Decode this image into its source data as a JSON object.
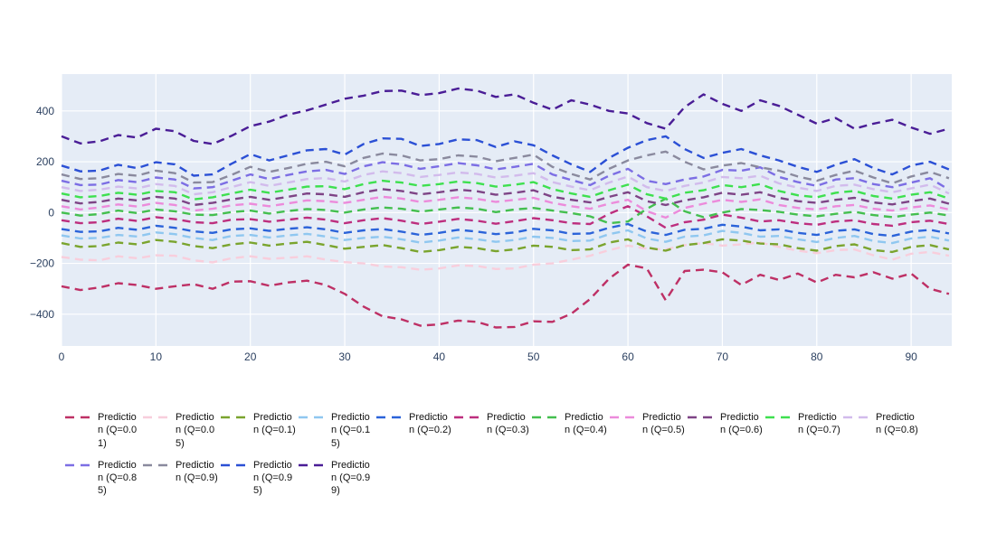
{
  "chart_data": {
    "type": "line",
    "title": "",
    "xlabel": "",
    "ylabel": "",
    "line_style": "dashed",
    "grid": true,
    "legend_position": "bottom",
    "plot_bgcolor": "#E5ECF6",
    "grid_color": "#FFFFFF",
    "tick_color": "#2a3f5f",
    "xlim": [
      0,
      94.3
    ],
    "ylim": [
      -525,
      545
    ],
    "x_ticks": [
      0,
      10,
      20,
      30,
      40,
      50,
      60,
      70,
      80,
      90
    ],
    "y_ticks": [
      -400,
      -200,
      0,
      200,
      400
    ],
    "x": [
      0,
      2,
      4,
      6,
      8,
      10,
      12,
      14,
      16,
      18,
      20,
      22,
      24,
      26,
      28,
      30,
      32,
      34,
      36,
      38,
      40,
      42,
      44,
      46,
      48,
      50,
      52,
      54,
      56,
      58,
      60,
      62,
      64,
      66,
      68,
      70,
      72,
      74,
      76,
      78,
      80,
      82,
      84,
      86,
      88,
      90,
      92,
      94
    ],
    "series": [
      {
        "name": "Prediction (Q=0.01)",
        "color": "#BE3065",
        "values": [
          -290,
          -305,
          -295,
          -278,
          -285,
          -300,
          -290,
          -282,
          -300,
          -272,
          -270,
          -288,
          -275,
          -268,
          -285,
          -320,
          -370,
          -408,
          -420,
          -445,
          -440,
          -425,
          -430,
          -452,
          -450,
          -428,
          -430,
          -398,
          -340,
          -260,
          -205,
          -220,
          -345,
          -230,
          -225,
          -235,
          -285,
          -245,
          -265,
          -240,
          -275,
          -245,
          -255,
          -235,
          -260,
          -240,
          -300,
          -320
        ]
      },
      {
        "name": "Prediction (Q=0.05)",
        "color": "#F8CEDC",
        "values": [
          -175,
          -185,
          -188,
          -172,
          -180,
          -168,
          -170,
          -188,
          -196,
          -180,
          -172,
          -182,
          -178,
          -172,
          -185,
          -195,
          -200,
          -212,
          -215,
          -225,
          -220,
          -208,
          -210,
          -222,
          -220,
          -205,
          -200,
          -185,
          -170,
          -148,
          -130,
          -142,
          -145,
          -128,
          -120,
          -130,
          -125,
          -118,
          -135,
          -150,
          -160,
          -148,
          -145,
          -168,
          -185,
          -162,
          -155,
          -170
        ]
      },
      {
        "name": "Prediction (Q=0.1)",
        "color": "#7AA42E",
        "values": [
          -120,
          -135,
          -132,
          -118,
          -125,
          -108,
          -115,
          -132,
          -140,
          -125,
          -118,
          -130,
          -122,
          -115,
          -128,
          -142,
          -135,
          -128,
          -140,
          -155,
          -148,
          -135,
          -140,
          -152,
          -145,
          -130,
          -135,
          -148,
          -145,
          -118,
          -105,
          -138,
          -150,
          -128,
          -120,
          -105,
          -110,
          -122,
          -125,
          -140,
          -150,
          -132,
          -125,
          -148,
          -155,
          -135,
          -128,
          -145
        ]
      },
      {
        "name": "Prediction (Q=0.15)",
        "color": "#8FC7F0",
        "values": [
          -90,
          -102,
          -100,
          -88,
          -94,
          -78,
          -85,
          -100,
          -108,
          -92,
          -88,
          -98,
          -90,
          -84,
          -94,
          -108,
          -100,
          -95,
          -105,
          -118,
          -110,
          -98,
          -105,
          -115,
          -108,
          -95,
          -100,
          -112,
          -110,
          -85,
          -70,
          -102,
          -115,
          -95,
          -90,
          -72,
          -80,
          -95,
          -92,
          -105,
          -116,
          -100,
          -92,
          -112,
          -120,
          -102,
          -95,
          -110
        ]
      },
      {
        "name": "Prediction (Q=0.2)",
        "color": "#2B63D9",
        "values": [
          -65,
          -76,
          -74,
          -60,
          -68,
          -52,
          -60,
          -74,
          -80,
          -66,
          -62,
          -72,
          -64,
          -58,
          -66,
          -80,
          -70,
          -65,
          -75,
          -88,
          -80,
          -68,
          -75,
          -85,
          -78,
          -64,
          -70,
          -84,
          -82,
          -60,
          -45,
          -75,
          -88,
          -68,
          -64,
          -48,
          -55,
          -70,
          -66,
          -80,
          -88,
          -72,
          -66,
          -85,
          -92,
          -75,
          -68,
          -82
        ]
      },
      {
        "name": "Prediction (Q=0.3)",
        "color": "#BD2E7E",
        "values": [
          -30,
          -42,
          -38,
          -24,
          -33,
          -18,
          -26,
          -38,
          -42,
          -28,
          -26,
          -36,
          -28,
          -20,
          -28,
          -42,
          -30,
          -22,
          -32,
          -45,
          -36,
          -25,
          -32,
          -44,
          -34,
          -22,
          -30,
          -42,
          -45,
          -5,
          25,
          -15,
          -60,
          -38,
          -28,
          -8,
          -20,
          -35,
          -30,
          -42,
          -48,
          -35,
          -30,
          -45,
          -52,
          -38,
          -32,
          -45
        ]
      },
      {
        "name": "Prediction (Q=0.4)",
        "color": "#44BF4F",
        "values": [
          0,
          -12,
          -6,
          8,
          -2,
          12,
          5,
          -8,
          -10,
          2,
          8,
          -4,
          6,
          14,
          10,
          0,
          12,
          20,
          15,
          4,
          12,
          20,
          15,
          2,
          12,
          18,
          8,
          -2,
          -15,
          -42,
          -35,
          15,
          55,
          5,
          -18,
          0,
          14,
          10,
          3,
          -8,
          -15,
          -5,
          3,
          -10,
          -18,
          -8,
          0,
          -12
        ]
      },
      {
        "name": "Prediction (Q=0.5)",
        "color": "#EC8BDB",
        "values": [
          25,
          12,
          20,
          32,
          24,
          38,
          30,
          8,
          15,
          28,
          35,
          25,
          36,
          48,
          45,
          38,
          50,
          62,
          55,
          42,
          50,
          60,
          54,
          42,
          50,
          58,
          38,
          25,
          15,
          35,
          50,
          5,
          -20,
          18,
          35,
          50,
          42,
          52,
          30,
          18,
          12,
          25,
          30,
          15,
          8,
          20,
          28,
          12
        ]
      },
      {
        "name": "Prediction (Q=0.6)",
        "color": "#7E4486",
        "values": [
          50,
          36,
          42,
          55,
          48,
          62,
          55,
          30,
          38,
          52,
          62,
          50,
          62,
          75,
          72,
          62,
          80,
          92,
          85,
          72,
          80,
          90,
          84,
          70,
          78,
          88,
          62,
          50,
          40,
          62,
          80,
          45,
          30,
          48,
          60,
          78,
          70,
          80,
          58,
          45,
          38,
          50,
          58,
          40,
          32,
          45,
          55,
          35
        ]
      },
      {
        "name": "Prediction (Q=0.7)",
        "color": "#3EE04F",
        "values": [
          75,
          60,
          65,
          78,
          70,
          85,
          80,
          52,
          60,
          75,
          90,
          78,
          90,
          102,
          104,
          92,
          112,
          125,
          118,
          105,
          112,
          122,
          116,
          102,
          110,
          120,
          92,
          75,
          62,
          88,
          110,
          72,
          55,
          78,
          88,
          108,
          100,
          112,
          85,
          68,
          60,
          78,
          85,
          65,
          55,
          70,
          80,
          55
        ]
      },
      {
        "name": "Prediction (Q=0.8)",
        "color": "#D2BBEC",
        "values": [
          100,
          85,
          90,
          102,
          95,
          112,
          105,
          72,
          80,
          100,
          120,
          105,
          118,
          132,
          136,
          122,
          148,
          162,
          155,
          140,
          148,
          158,
          152,
          138,
          145,
          155,
          120,
          102,
          88,
          118,
          142,
          100,
          85,
          105,
          118,
          140,
          135,
          145,
          115,
          98,
          85,
          105,
          110,
          92,
          80,
          95,
          110,
          75
        ]
      },
      {
        "name": "Prediction (Q=0.85)",
        "color": "#7C6EE4",
        "values": [
          125,
          108,
          110,
          128,
          120,
          138,
          130,
          95,
          100,
          125,
          150,
          132,
          148,
          162,
          168,
          152,
          182,
          198,
          190,
          172,
          182,
          195,
          186,
          170,
          180,
          192,
          150,
          128,
          108,
          145,
          172,
          125,
          112,
          130,
          142,
          168,
          165,
          178,
          140,
          120,
          105,
          130,
          135,
          112,
          100,
          118,
          135,
          90
        ]
      },
      {
        "name": "Prediction (Q=0.9)",
        "color": "#8A8A9E",
        "values": [
          150,
          132,
          135,
          152,
          145,
          165,
          155,
          118,
          120,
          148,
          180,
          160,
          175,
          192,
          200,
          182,
          215,
          232,
          225,
          205,
          210,
          225,
          220,
          202,
          215,
          228,
          180,
          152,
          130,
          172,
          205,
          225,
          240,
          200,
          170,
          185,
          195,
          178,
          165,
          142,
          125,
          148,
          165,
          138,
          115,
          142,
          160,
          135
        ]
      },
      {
        "name": "Prediction (Q=0.95)",
        "color": "#2B50D5",
        "values": [
          185,
          162,
          165,
          188,
          175,
          198,
          190,
          145,
          150,
          192,
          230,
          205,
          225,
          245,
          250,
          228,
          270,
          292,
          290,
          262,
          270,
          288,
          285,
          258,
          280,
          265,
          225,
          190,
          160,
          215,
          255,
          285,
          300,
          250,
          215,
          235,
          250,
          225,
          205,
          180,
          160,
          188,
          210,
          175,
          150,
          185,
          200,
          170
        ]
      },
      {
        "name": "Prediction (Q=0.99)",
        "color": "#4A1D96",
        "values": [
          300,
          272,
          280,
          305,
          295,
          330,
          320,
          282,
          270,
          302,
          340,
          358,
          385,
          402,
          425,
          448,
          460,
          478,
          480,
          462,
          470,
          488,
          480,
          455,
          465,
          432,
          405,
          442,
          425,
          400,
          390,
          352,
          330,
          415,
          465,
          428,
          400,
          442,
          420,
          385,
          350,
          372,
          330,
          350,
          365,
          335,
          310,
          330
        ]
      }
    ]
  }
}
